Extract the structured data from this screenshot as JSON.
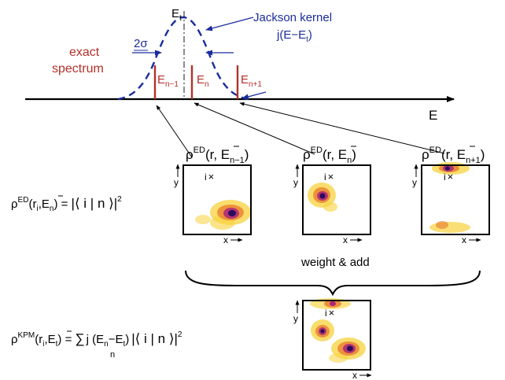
{
  "top": {
    "et_label": "E",
    "et_sub": "t",
    "kernel_title": "Jackson kernel",
    "kernel_expr_pre": "j(E−E",
    "kernel_expr_sub": "t",
    "kernel_expr_post": ")",
    "sigma_label": "2σ",
    "exact_line1": "exact",
    "exact_line2": "spectrum",
    "e_nm1": "E",
    "e_nm1_sub": "n−1",
    "e_n": "E",
    "e_n_sub": "n",
    "e_np1": "E",
    "e_np1_sub": "n+1",
    "energy_axis": "E"
  },
  "panels": [
    {
      "pre": "ρ",
      "sup": "ED",
      "mid": "(r, E",
      "sub": "n−1",
      "post": ")"
    },
    {
      "pre": "ρ",
      "sup": "ED",
      "mid": "(r, E",
      "sub": "n",
      "post": ")"
    },
    {
      "pre": "ρ",
      "sup": "ED",
      "mid": "(r, E",
      "sub": "n+1",
      "post": ")"
    }
  ],
  "axes": {
    "x": "x",
    "y": "y",
    "i": "i",
    "cross": "×"
  },
  "weight_add": "weight & add",
  "eq_ed": {
    "lhs": "ρ",
    "sup": "ED",
    "args_pre": "(r",
    "args_i": "i",
    "args_mid": ",E",
    "args_n": "n",
    "args_post": ") = ",
    "ket": "|⟨ i | n ⟩|",
    "pow": "2"
  },
  "eq_kpm": {
    "lhs": "ρ",
    "sup": "KPM",
    "args_pre": "(r",
    "args_i": "i",
    "args_mid": ",E",
    "args_t": "t",
    "args_post": ") = ",
    "sum": "∑",
    "sum_sub": "n",
    "body_pre": "j (E",
    "body_n": "n",
    "body_mid": "−E",
    "body_t": "t",
    "body_post": ")",
    "ket": "|⟨ i | n ⟩|",
    "pow": "2"
  },
  "colors": {
    "kernel": "#1b2d9c",
    "spectrum": "#b5302a",
    "arrow": "#1b2d9c",
    "dark": "#2a0a5e",
    "magenta": "#a8237a",
    "orange": "#e8782a",
    "yellow": "#f7d23c"
  }
}
